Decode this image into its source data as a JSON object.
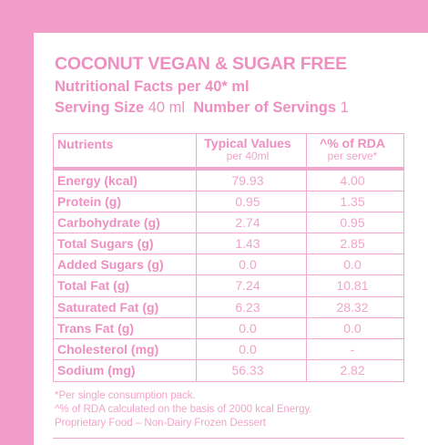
{
  "label": {
    "title": "COCONUT VEGAN & SUGAR FREE",
    "subtitle": "Nutritional Facts per 40* ml",
    "serving_size_label": "Serving Size",
    "serving_size_value": "40 ml",
    "servings_label": "Number of Servings",
    "servings_value": "1"
  },
  "table": {
    "header": {
      "nutrients": "Nutrients",
      "typical_values": "Typical Values",
      "typical_values_sub": "per 40ml",
      "rda": "^% of RDA",
      "rda_sub": "per serve*"
    },
    "rows": [
      {
        "name": "Energy (kcal)",
        "value": "79.93",
        "rda": "4.00"
      },
      {
        "name": "Protein (g)",
        "value": "0.95",
        "rda": "1.35"
      },
      {
        "name": "Carbohydrate (g)",
        "value": "2.74",
        "rda": "0.95"
      },
      {
        "name": "Total Sugars (g)",
        "value": "1.43",
        "rda": "2.85"
      },
      {
        "name": "Added Sugars (g)",
        "value": "0.0",
        "rda": "0.0"
      },
      {
        "name": "Total Fat (g)",
        "value": "7.24",
        "rda": "10.81"
      },
      {
        "name": "Saturated Fat (g)",
        "value": "6.23",
        "rda": "28.32"
      },
      {
        "name": "Trans Fat (g)",
        "value": "0.0",
        "rda": "0.0"
      },
      {
        "name": "Cholesterol (mg)",
        "value": "0.0",
        "rda": "-"
      },
      {
        "name": "Sodium (mg)",
        "value": "56.33",
        "rda": "2.82"
      }
    ]
  },
  "footnotes": {
    "line1": "*Per single consumption pack.",
    "line2": "^% of RDA calculated on the basis of 2000 kcal Energy.",
    "line3": "Proprietary Food – Non-Dairy Frozen Dessert"
  },
  "colors": {
    "background": "#f29cc9",
    "card": "#ffffff",
    "text_bold": "#ef8fc1",
    "text_light": "#f2a3c8",
    "rule": "#f3a6cd"
  }
}
